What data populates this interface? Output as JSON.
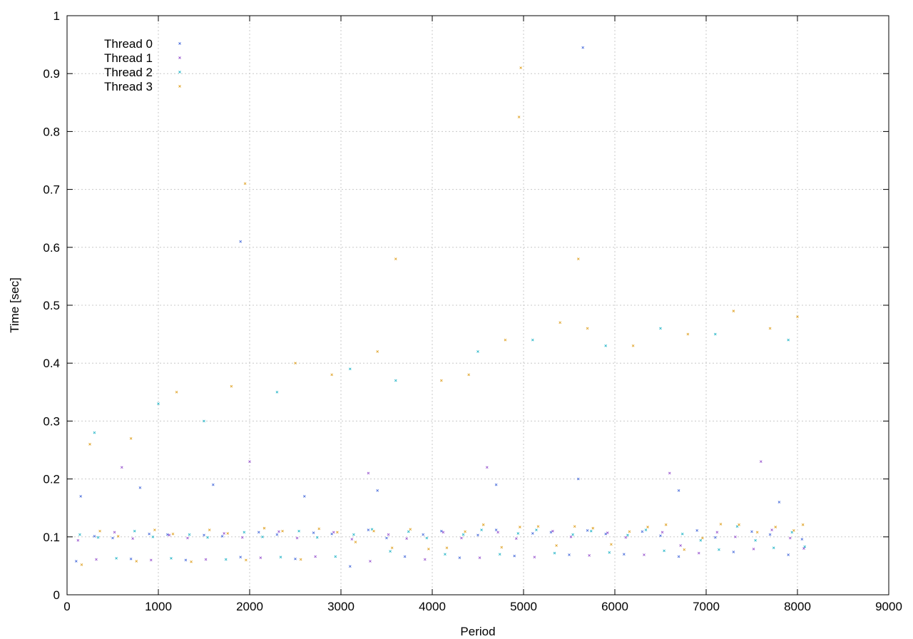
{
  "chart_data": {
    "type": "scatter",
    "title": "",
    "xlabel": "Period",
    "ylabel": "Time [sec]",
    "xlim": [
      0,
      9000
    ],
    "ylim": [
      0,
      1
    ],
    "xticks": [
      0,
      1000,
      2000,
      3000,
      4000,
      5000,
      6000,
      7000,
      8000,
      9000
    ],
    "yticks": [
      0,
      0.1,
      0.2,
      0.3,
      0.4,
      0.5,
      0.6,
      0.7,
      0.8,
      0.9,
      1
    ],
    "xtick_labels": [
      "0",
      "1000",
      "2000",
      "3000",
      "4000",
      "5000",
      "6000",
      "7000",
      "8000",
      "9000"
    ],
    "ytick_labels": [
      "0",
      "0.1",
      "0.2",
      "0.3",
      "0.4",
      "0.5",
      "0.6",
      "0.7",
      "0.8",
      "0.9",
      "1"
    ],
    "grid": true,
    "legend_position": "top-left",
    "series": [
      {
        "name": "Thread 0",
        "color": "#4c6fdc",
        "points": [
          [
            100,
            0.058
          ],
          [
            300,
            0.101
          ],
          [
            500,
            0.098
          ],
          [
            700,
            0.062
          ],
          [
            900,
            0.105
          ],
          [
            1100,
            0.104
          ],
          [
            1300,
            0.06
          ],
          [
            1500,
            0.103
          ],
          [
            1700,
            0.101
          ],
          [
            1900,
            0.065
          ],
          [
            2100,
            0.108
          ],
          [
            2300,
            0.104
          ],
          [
            2500,
            0.062
          ],
          [
            2700,
            0.107
          ],
          [
            2900,
            0.105
          ],
          [
            3100,
            0.049
          ],
          [
            3300,
            0.112
          ],
          [
            3500,
            0.098
          ],
          [
            3700,
            0.066
          ],
          [
            3900,
            0.104
          ],
          [
            4100,
            0.11
          ],
          [
            4300,
            0.064
          ],
          [
            4500,
            0.103
          ],
          [
            4700,
            0.112
          ],
          [
            4900,
            0.067
          ],
          [
            5100,
            0.106
          ],
          [
            5300,
            0.108
          ],
          [
            5500,
            0.069
          ],
          [
            5700,
            0.111
          ],
          [
            5900,
            0.105
          ],
          [
            6100,
            0.07
          ],
          [
            6300,
            0.109
          ],
          [
            6500,
            0.102
          ],
          [
            6700,
            0.066
          ],
          [
            6900,
            0.111
          ],
          [
            7100,
            0.099
          ],
          [
            7300,
            0.074
          ],
          [
            7500,
            0.109
          ],
          [
            7700,
            0.104
          ],
          [
            7900,
            0.069
          ],
          [
            8050,
            0.096
          ],
          [
            150,
            0.17
          ],
          [
            800,
            0.185
          ],
          [
            1600,
            0.19
          ],
          [
            2600,
            0.17
          ],
          [
            3400,
            0.18
          ],
          [
            4700,
            0.19
          ],
          [
            5600,
            0.2
          ],
          [
            6700,
            0.18
          ],
          [
            7800,
            0.16
          ],
          [
            1900,
            0.61
          ],
          [
            5650,
            0.945
          ]
        ]
      },
      {
        "name": "Thread 1",
        "color": "#9b59d0",
        "points": [
          [
            120,
            0.094
          ],
          [
            320,
            0.061
          ],
          [
            520,
            0.108
          ],
          [
            720,
            0.097
          ],
          [
            920,
            0.06
          ],
          [
            1120,
            0.103
          ],
          [
            1320,
            0.098
          ],
          [
            1520,
            0.061
          ],
          [
            1720,
            0.106
          ],
          [
            1920,
            0.099
          ],
          [
            2120,
            0.064
          ],
          [
            2320,
            0.109
          ],
          [
            2520,
            0.098
          ],
          [
            2720,
            0.066
          ],
          [
            2920,
            0.108
          ],
          [
            3120,
            0.096
          ],
          [
            3320,
            0.058
          ],
          [
            3520,
            0.104
          ],
          [
            3720,
            0.097
          ],
          [
            3920,
            0.061
          ],
          [
            4120,
            0.108
          ],
          [
            4320,
            0.098
          ],
          [
            4520,
            0.064
          ],
          [
            4720,
            0.108
          ],
          [
            4920,
            0.097
          ],
          [
            5120,
            0.065
          ],
          [
            5320,
            0.11
          ],
          [
            5520,
            0.1
          ],
          [
            5720,
            0.068
          ],
          [
            5920,
            0.107
          ],
          [
            6120,
            0.099
          ],
          [
            6320,
            0.069
          ],
          [
            6520,
            0.108
          ],
          [
            6720,
            0.085
          ],
          [
            6920,
            0.072
          ],
          [
            7120,
            0.108
          ],
          [
            7320,
            0.1
          ],
          [
            7520,
            0.079
          ],
          [
            7720,
            0.112
          ],
          [
            7920,
            0.098
          ],
          [
            8070,
            0.08
          ],
          [
            600,
            0.22
          ],
          [
            2000,
            0.23
          ],
          [
            3300,
            0.21
          ],
          [
            4600,
            0.22
          ],
          [
            6600,
            0.21
          ],
          [
            7600,
            0.23
          ]
        ]
      },
      {
        "name": "Thread 2",
        "color": "#2ab7c9",
        "points": [
          [
            140,
            0.104
          ],
          [
            340,
            0.099
          ],
          [
            540,
            0.063
          ],
          [
            740,
            0.11
          ],
          [
            940,
            0.1
          ],
          [
            1140,
            0.063
          ],
          [
            1340,
            0.104
          ],
          [
            1540,
            0.099
          ],
          [
            1740,
            0.061
          ],
          [
            1940,
            0.108
          ],
          [
            2140,
            0.1
          ],
          [
            2340,
            0.065
          ],
          [
            2540,
            0.11
          ],
          [
            2740,
            0.099
          ],
          [
            2940,
            0.066
          ],
          [
            3140,
            0.104
          ],
          [
            3340,
            0.113
          ],
          [
            3540,
            0.075
          ],
          [
            3740,
            0.109
          ],
          [
            3940,
            0.098
          ],
          [
            4140,
            0.07
          ],
          [
            4340,
            0.104
          ],
          [
            4540,
            0.112
          ],
          [
            4740,
            0.07
          ],
          [
            4940,
            0.106
          ],
          [
            5140,
            0.112
          ],
          [
            5340,
            0.072
          ],
          [
            5540,
            0.104
          ],
          [
            5740,
            0.11
          ],
          [
            5940,
            0.073
          ],
          [
            6140,
            0.103
          ],
          [
            6340,
            0.112
          ],
          [
            6540,
            0.076
          ],
          [
            6740,
            0.105
          ],
          [
            6940,
            0.094
          ],
          [
            7140,
            0.078
          ],
          [
            7340,
            0.118
          ],
          [
            7540,
            0.094
          ],
          [
            7740,
            0.081
          ],
          [
            7940,
            0.108
          ],
          [
            8080,
            0.083
          ],
          [
            300,
            0.28
          ],
          [
            1000,
            0.33
          ],
          [
            1500,
            0.3
          ],
          [
            2300,
            0.35
          ],
          [
            3100,
            0.39
          ],
          [
            3600,
            0.37
          ],
          [
            4500,
            0.42
          ],
          [
            5100,
            0.44
          ],
          [
            5900,
            0.43
          ],
          [
            6500,
            0.46
          ],
          [
            7100,
            0.45
          ],
          [
            7900,
            0.44
          ]
        ]
      },
      {
        "name": "Thread 3",
        "color": "#e0a52c",
        "points": [
          [
            160,
            0.052
          ],
          [
            360,
            0.11
          ],
          [
            560,
            0.101
          ],
          [
            760,
            0.058
          ],
          [
            960,
            0.112
          ],
          [
            1160,
            0.105
          ],
          [
            1360,
            0.057
          ],
          [
            1560,
            0.112
          ],
          [
            1760,
            0.106
          ],
          [
            1960,
            0.06
          ],
          [
            2160,
            0.115
          ],
          [
            2360,
            0.11
          ],
          [
            2560,
            0.061
          ],
          [
            2760,
            0.114
          ],
          [
            2960,
            0.108
          ],
          [
            3160,
            0.091
          ],
          [
            3360,
            0.11
          ],
          [
            3560,
            0.081
          ],
          [
            3760,
            0.113
          ],
          [
            3960,
            0.079
          ],
          [
            4160,
            0.081
          ],
          [
            4360,
            0.109
          ],
          [
            4560,
            0.121
          ],
          [
            4760,
            0.082
          ],
          [
            4960,
            0.117
          ],
          [
            5160,
            0.118
          ],
          [
            5360,
            0.085
          ],
          [
            5560,
            0.118
          ],
          [
            5760,
            0.115
          ],
          [
            5960,
            0.087
          ],
          [
            6160,
            0.109
          ],
          [
            6360,
            0.117
          ],
          [
            6560,
            0.121
          ],
          [
            6760,
            0.078
          ],
          [
            6960,
            0.098
          ],
          [
            7160,
            0.122
          ],
          [
            7360,
            0.121
          ],
          [
            7560,
            0.108
          ],
          [
            7760,
            0.117
          ],
          [
            7960,
            0.111
          ],
          [
            8060,
            0.121
          ],
          [
            250,
            0.26
          ],
          [
            700,
            0.27
          ],
          [
            1200,
            0.35
          ],
          [
            1800,
            0.36
          ],
          [
            2500,
            0.4
          ],
          [
            2900,
            0.38
          ],
          [
            3400,
            0.42
          ],
          [
            4100,
            0.37
          ],
          [
            4400,
            0.38
          ],
          [
            4800,
            0.44
          ],
          [
            5400,
            0.47
          ],
          [
            5700,
            0.46
          ],
          [
            6200,
            0.43
          ],
          [
            6800,
            0.45
          ],
          [
            7300,
            0.49
          ],
          [
            7700,
            0.46
          ],
          [
            8000,
            0.48
          ],
          [
            3600,
            0.58
          ],
          [
            5600,
            0.58
          ],
          [
            1950,
            0.71
          ],
          [
            4950,
            0.825
          ],
          [
            4970,
            0.91
          ]
        ]
      }
    ]
  }
}
